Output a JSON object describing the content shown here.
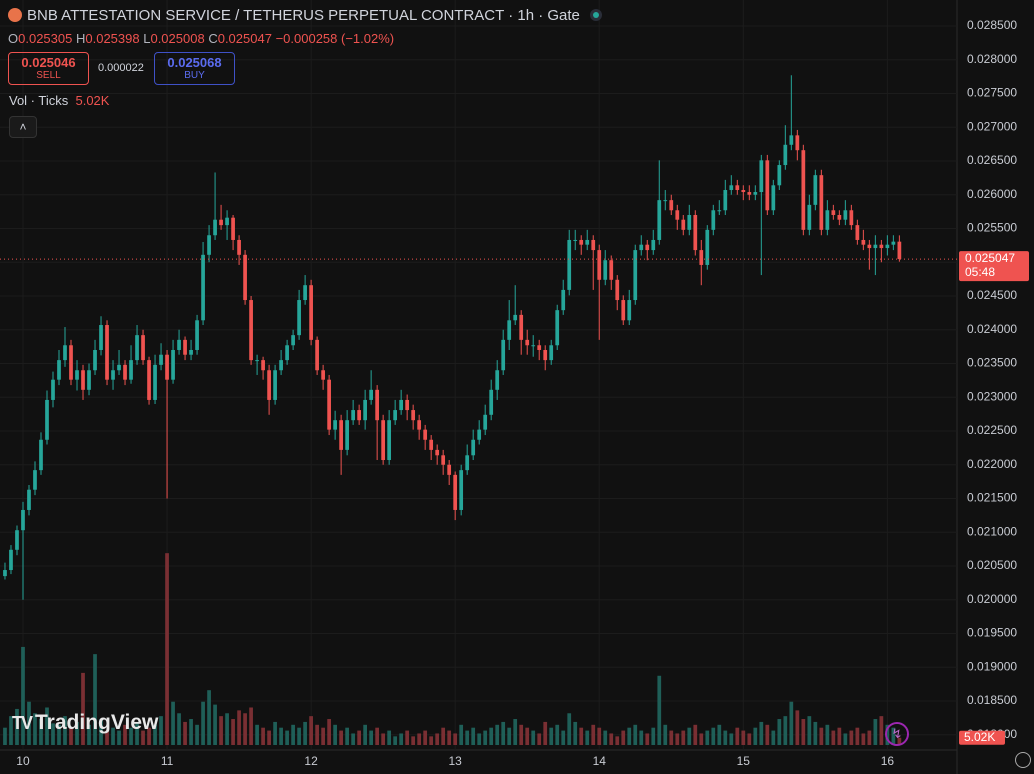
{
  "chart_data": {
    "type": "candlestick",
    "title": "BNB ATTESTATION SERVICE / TETHERUS PERPETUAL CONTRACT · 1h · Gate",
    "up_color": "#26a69a",
    "down_color": "#ef5350",
    "volume_up_color": "#1f5f58",
    "volume_down_color": "#7a2f33",
    "grid": true,
    "ylim": [
      0.017774,
      0.028885
    ],
    "yticks": [
      {
        "value": 0.018,
        "label": "0.018000"
      },
      {
        "value": 0.0185,
        "label": "0.018500"
      },
      {
        "value": 0.019,
        "label": "0.019000"
      },
      {
        "value": 0.0195,
        "label": "0.019500"
      },
      {
        "value": 0.02,
        "label": "0.020000"
      },
      {
        "value": 0.0205,
        "label": "0.020500"
      },
      {
        "value": 0.021,
        "label": "0.021000"
      },
      {
        "value": 0.0215,
        "label": "0.021500"
      },
      {
        "value": 0.022,
        "label": "0.022000"
      },
      {
        "value": 0.0225,
        "label": "0.022500"
      },
      {
        "value": 0.023,
        "label": "0.023000"
      },
      {
        "value": 0.0235,
        "label": "0.023500"
      },
      {
        "value": 0.024,
        "label": "0.024000"
      },
      {
        "value": 0.0245,
        "label": "0.024500"
      },
      {
        "value": 0.025,
        "label": "0.025000"
      },
      {
        "value": 0.0255,
        "label": "0.025500"
      },
      {
        "value": 0.026,
        "label": "0.026000"
      },
      {
        "value": 0.0265,
        "label": "0.026500"
      },
      {
        "value": 0.027,
        "label": "0.027000"
      },
      {
        "value": 0.0275,
        "label": "0.027500"
      },
      {
        "value": 0.028,
        "label": "0.028000"
      },
      {
        "value": 0.0285,
        "label": "0.028500"
      }
    ],
    "xlim": [
      -0.83,
      158.6
    ],
    "xticks": [
      {
        "value": 3,
        "label": "10"
      },
      {
        "value": 27,
        "label": "11"
      },
      {
        "value": 51,
        "label": "12"
      },
      {
        "value": 75,
        "label": "13"
      },
      {
        "value": 99,
        "label": "14"
      },
      {
        "value": 123,
        "label": "15"
      },
      {
        "value": 147,
        "label": "16"
      }
    ],
    "volume_ylim": [
      0,
      520
    ],
    "volume_label": "5.02K",
    "countdown": "05:48",
    "open": [
      0.02035,
      0.02044,
      0.02074,
      0.02103,
      0.02133,
      0.02163,
      0.02192,
      0.02237,
      0.02296,
      0.02326,
      0.02355,
      0.02377,
      0.02326,
      0.0234,
      0.02311,
      0.0234,
      0.0237,
      0.02407,
      0.02326,
      0.0234,
      0.02348,
      0.02326,
      0.02355,
      0.02392,
      0.02355,
      0.02296,
      0.02348,
      0.02363,
      0.02326,
      0.0237,
      0.02385,
      0.02363,
      0.0237,
      0.02414,
      0.02511,
      0.0254,
      0.02563,
      0.02555,
      0.02566,
      0.02533,
      0.02511,
      0.02444,
      0.02355,
      0.02355,
      0.0234,
      0.02296,
      0.0234,
      0.02355,
      0.02377,
      0.02392,
      0.02444,
      0.02466,
      0.02385,
      0.0234,
      0.02326,
      0.02252,
      0.02266,
      0.02222,
      0.02266,
      0.02281,
      0.02266,
      0.02296,
      0.02311,
      0.02266,
      0.02207,
      0.02266,
      0.02281,
      0.02296,
      0.02281,
      0.02266,
      0.02252,
      0.02237,
      0.02222,
      0.02214,
      0.022,
      0.02185,
      0.02133,
      0.02192,
      0.02214,
      0.02237,
      0.02252,
      0.02274,
      0.02311,
      0.0234,
      0.02385,
      0.02414,
      0.02422,
      0.02385,
      0.02377,
      0.02377,
      0.0237,
      0.02355,
      0.02377,
      0.02429,
      0.02459,
      0.02533,
      0.02533,
      0.02526,
      0.02533,
      0.02518,
      0.02474,
      0.02503,
      0.02474,
      0.02444,
      0.02414,
      0.02444,
      0.02518,
      0.02526,
      0.02518,
      0.02533,
      0.02592,
      0.02592,
      0.02577,
      0.02563,
      0.02548,
      0.0257,
      0.02518,
      0.02496,
      0.02548,
      0.02577,
      0.02577,
      0.02607,
      0.02614,
      0.02607,
      0.02604,
      0.026,
      0.02604,
      0.02651,
      0.02577,
      0.02614,
      0.02644,
      0.02674,
      0.02688,
      0.02666,
      0.02548,
      0.02585,
      0.02629,
      0.02548,
      0.02577,
      0.0257,
      0.02563,
      0.02577,
      0.02555,
      0.02533,
      0.02526,
      0.02521,
      0.02526,
      0.02521,
      0.02526,
      0.025305
    ],
    "high": [
      0.02055,
      0.02081,
      0.0211,
      0.02145,
      0.0217,
      0.02205,
      0.02248,
      0.0231,
      0.02338,
      0.0237,
      0.02404,
      0.02385,
      0.02355,
      0.02348,
      0.0235,
      0.02385,
      0.0242,
      0.02414,
      0.02355,
      0.0237,
      0.02355,
      0.02377,
      0.02407,
      0.024,
      0.0236,
      0.02363,
      0.0238,
      0.0237,
      0.02385,
      0.024,
      0.0239,
      0.02385,
      0.02422,
      0.0253,
      0.02555,
      0.02633,
      0.02585,
      0.02577,
      0.0257,
      0.0254,
      0.02518,
      0.0245,
      0.02363,
      0.0236,
      0.02348,
      0.02348,
      0.0237,
      0.02385,
      0.024,
      0.02459,
      0.02481,
      0.02474,
      0.0239,
      0.02348,
      0.02333,
      0.0228,
      0.02274,
      0.02281,
      0.02296,
      0.02289,
      0.02311,
      0.0234,
      0.02318,
      0.02274,
      0.02281,
      0.02296,
      0.02311,
      0.02304,
      0.02289,
      0.02274,
      0.02259,
      0.02244,
      0.0223,
      0.02222,
      0.02207,
      0.0219,
      0.022,
      0.0223,
      0.02252,
      0.02266,
      0.02289,
      0.02326,
      0.02355,
      0.024,
      0.02444,
      0.02466,
      0.02429,
      0.024,
      0.02392,
      0.02385,
      0.02377,
      0.02385,
      0.02437,
      0.02474,
      0.02548,
      0.02548,
      0.0254,
      0.02548,
      0.0254,
      0.02526,
      0.02518,
      0.0251,
      0.02481,
      0.02451,
      0.02459,
      0.02526,
      0.0254,
      0.02533,
      0.02548,
      0.02651,
      0.02607,
      0.026,
      0.02585,
      0.0257,
      0.02585,
      0.02577,
      0.02533,
      0.02555,
      0.02585,
      0.02592,
      0.02622,
      0.02629,
      0.02622,
      0.02614,
      0.02614,
      0.02614,
      0.02659,
      0.02659,
      0.02622,
      0.02651,
      0.02703,
      0.02777,
      0.02696,
      0.02674,
      0.026,
      0.02637,
      0.02637,
      0.02592,
      0.02585,
      0.02577,
      0.02592,
      0.02585,
      0.02563,
      0.02548,
      0.02533,
      0.0254,
      0.02533,
      0.0254,
      0.0254,
      0.025398
    ],
    "low": [
      0.0203,
      0.02038,
      0.02066,
      0.02,
      0.02125,
      0.02155,
      0.02185,
      0.0223,
      0.02285,
      0.02318,
      0.02345,
      0.02318,
      0.0231,
      0.02296,
      0.02303,
      0.02333,
      0.02362,
      0.02318,
      0.02311,
      0.02333,
      0.02318,
      0.0232,
      0.02348,
      0.02348,
      0.02289,
      0.0229,
      0.0234,
      0.0215,
      0.0232,
      0.02363,
      0.02355,
      0.02355,
      0.02363,
      0.02407,
      0.025,
      0.02533,
      0.02548,
      0.02533,
      0.02518,
      0.02496,
      0.02437,
      0.02348,
      0.02333,
      0.02326,
      0.02274,
      0.02289,
      0.02333,
      0.02348,
      0.0237,
      0.02385,
      0.02437,
      0.02377,
      0.02333,
      0.02311,
      0.02244,
      0.02237,
      0.02185,
      0.02214,
      0.02259,
      0.02259,
      0.02252,
      0.02289,
      0.02207,
      0.022,
      0.022,
      0.02259,
      0.02274,
      0.02266,
      0.02252,
      0.02237,
      0.02222,
      0.02207,
      0.022,
      0.02185,
      0.0217,
      0.02118,
      0.02125,
      0.02185,
      0.02207,
      0.0223,
      0.02244,
      0.02266,
      0.02296,
      0.02333,
      0.0237,
      0.02407,
      0.02363,
      0.02363,
      0.0236,
      0.02355,
      0.0234,
      0.02348,
      0.0237,
      0.02422,
      0.02451,
      0.02518,
      0.02511,
      0.02518,
      0.02459,
      0.02385,
      0.02466,
      0.02459,
      0.02429,
      0.02407,
      0.02407,
      0.02437,
      0.0251,
      0.02503,
      0.02511,
      0.02526,
      0.02577,
      0.0257,
      0.02548,
      0.0254,
      0.0254,
      0.0251,
      0.02466,
      0.02489,
      0.0254,
      0.0257,
      0.0257,
      0.026,
      0.026,
      0.02592,
      0.02592,
      0.02592,
      0.02481,
      0.0257,
      0.0257,
      0.02607,
      0.02637,
      0.02666,
      0.02651,
      0.0254,
      0.0254,
      0.02577,
      0.0254,
      0.0254,
      0.02563,
      0.02555,
      0.02555,
      0.02548,
      0.02526,
      0.02518,
      0.02489,
      0.02481,
      0.025,
      0.0251,
      0.02518,
      0.025008
    ],
    "close": [
      0.02044,
      0.02074,
      0.02103,
      0.02133,
      0.02163,
      0.02192,
      0.02237,
      0.02296,
      0.02326,
      0.02355,
      0.02377,
      0.02326,
      0.0234,
      0.02311,
      0.0234,
      0.0237,
      0.02407,
      0.02326,
      0.0234,
      0.02348,
      0.02326,
      0.02355,
      0.02392,
      0.02355,
      0.02296,
      0.02348,
      0.02363,
      0.02326,
      0.0237,
      0.02385,
      0.02363,
      0.0237,
      0.02414,
      0.02511,
      0.0254,
      0.02563,
      0.02555,
      0.02566,
      0.02533,
      0.02511,
      0.02444,
      0.02355,
      0.02355,
      0.0234,
      0.02296,
      0.0234,
      0.02355,
      0.02377,
      0.02392,
      0.02444,
      0.02466,
      0.02385,
      0.0234,
      0.02326,
      0.02252,
      0.02266,
      0.02222,
      0.02266,
      0.02281,
      0.02266,
      0.02296,
      0.02311,
      0.02266,
      0.02207,
      0.02266,
      0.02281,
      0.02296,
      0.02281,
      0.02266,
      0.02252,
      0.02237,
      0.02222,
      0.02214,
      0.022,
      0.02185,
      0.02133,
      0.02192,
      0.02214,
      0.02237,
      0.02252,
      0.02274,
      0.02311,
      0.0234,
      0.02385,
      0.02414,
      0.02422,
      0.02385,
      0.02377,
      0.02377,
      0.0237,
      0.02355,
      0.02377,
      0.02429,
      0.02459,
      0.02533,
      0.02533,
      0.02526,
      0.02533,
      0.02518,
      0.02474,
      0.02503,
      0.02474,
      0.02444,
      0.02414,
      0.02444,
      0.02518,
      0.02526,
      0.02518,
      0.02533,
      0.02592,
      0.02592,
      0.02577,
      0.02563,
      0.02548,
      0.0257,
      0.02518,
      0.02496,
      0.02548,
      0.02577,
      0.02577,
      0.02607,
      0.02614,
      0.02607,
      0.02604,
      0.026,
      0.02604,
      0.02651,
      0.02577,
      0.02614,
      0.02644,
      0.02674,
      0.02688,
      0.02666,
      0.02548,
      0.02585,
      0.02629,
      0.02548,
      0.02577,
      0.0257,
      0.02563,
      0.02577,
      0.02555,
      0.02533,
      0.02526,
      0.02521,
      0.02526,
      0.02521,
      0.02526,
      0.025305,
      0.025047
    ],
    "volume": [
      12,
      20,
      25,
      68,
      30,
      22,
      18,
      26,
      15,
      14,
      20,
      12,
      16,
      50,
      14,
      63,
      18,
      10,
      12,
      10,
      14,
      12,
      16,
      10,
      12,
      14,
      20,
      133,
      30,
      22,
      16,
      18,
      14,
      30,
      38,
      28,
      20,
      22,
      18,
      24,
      22,
      26,
      14,
      12,
      10,
      16,
      12,
      10,
      14,
      12,
      16,
      20,
      14,
      12,
      18,
      14,
      10,
      12,
      8,
      10,
      14,
      10,
      12,
      8,
      10,
      6,
      8,
      10,
      6,
      8,
      10,
      6,
      8,
      12,
      10,
      8,
      14,
      10,
      12,
      8,
      10,
      12,
      14,
      16,
      12,
      18,
      14,
      12,
      10,
      8,
      16,
      12,
      14,
      10,
      22,
      16,
      12,
      10,
      14,
      12,
      10,
      8,
      6,
      10,
      12,
      14,
      10,
      8,
      12,
      48,
      14,
      10,
      8,
      10,
      12,
      14,
      8,
      10,
      12,
      14,
      10,
      8,
      12,
      10,
      8,
      12,
      16,
      14,
      10,
      18,
      20,
      30,
      24,
      18,
      20,
      16,
      12,
      14,
      10,
      12,
      8,
      10,
      12,
      8,
      10,
      18,
      20,
      14,
      12,
      5.02
    ]
  },
  "legend": {
    "o": "O",
    "h": "H",
    "l": "L",
    "c": "C",
    "change": "−0.000258 (−1.02%)",
    "vol_title": "Vol · Ticks"
  },
  "trade": {
    "sell_price": "0.025046",
    "sell": "SELL",
    "spread": "0.000022",
    "buy_price": "0.025068",
    "buy": "BUY"
  },
  "brand": "TradingView"
}
